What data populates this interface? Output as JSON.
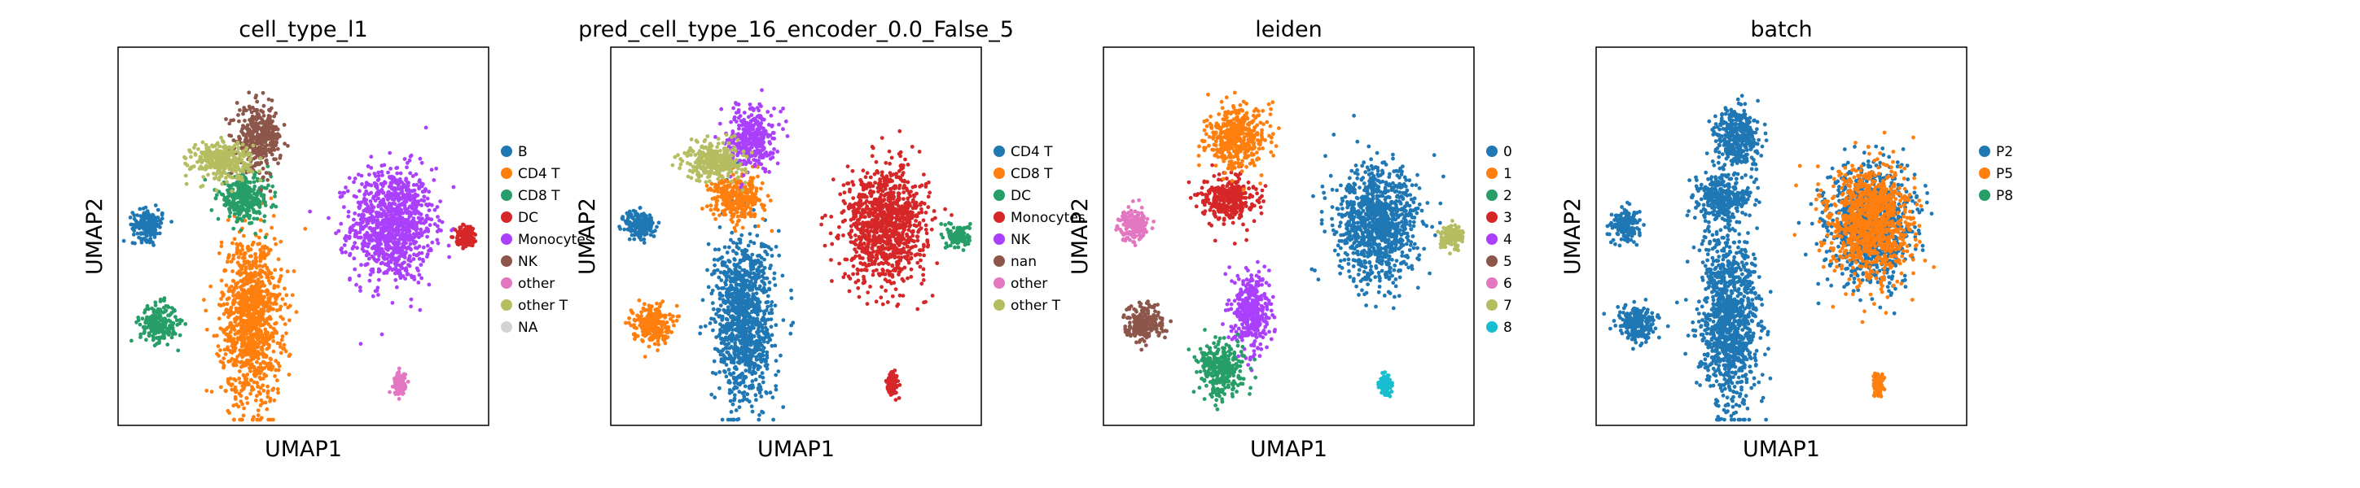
{
  "chart_data": [
    {
      "type": "scatter",
      "title": "cell_type_l1",
      "xlabel": "UMAP1",
      "ylabel": "UMAP2",
      "legend_position": "right",
      "grid": false,
      "legend": [
        {
          "label": "B",
          "color": "#1f77b4"
        },
        {
          "label": "CD4 T",
          "color": "#ff7f0e"
        },
        {
          "label": "CD8 T",
          "color": "#279e68"
        },
        {
          "label": "DC",
          "color": "#d62728"
        },
        {
          "label": "Monocytes",
          "color": "#aa40fc"
        },
        {
          "label": "NK",
          "color": "#8c564b"
        },
        {
          "label": "other",
          "color": "#e377c2"
        },
        {
          "label": "other T",
          "color": "#b5bd61"
        },
        {
          "label": "NA",
          "color": "#d3d3d3"
        }
      ],
      "clusters": [
        {
          "label": "Monocytes",
          "center": [
            0.74,
            0.53
          ],
          "spread": [
            0.11,
            0.15
          ]
        },
        {
          "label": "DC",
          "center": [
            0.94,
            0.5
          ],
          "spread": [
            0.03,
            0.03
          ]
        },
        {
          "label": "B",
          "center": [
            0.08,
            0.53
          ],
          "spread": [
            0.04,
            0.04
          ]
        },
        {
          "label": "CD8 T",
          "center": [
            0.11,
            0.27
          ],
          "spread": [
            0.05,
            0.05
          ]
        },
        {
          "label": "CD4 T",
          "center": [
            0.36,
            0.28
          ],
          "spread": [
            0.08,
            0.22
          ]
        },
        {
          "label": "CD8 T",
          "center": [
            0.34,
            0.6
          ],
          "spread": [
            0.07,
            0.06
          ]
        },
        {
          "label": "NK",
          "center": [
            0.38,
            0.76
          ],
          "spread": [
            0.06,
            0.08
          ]
        },
        {
          "label": "other T",
          "center": [
            0.28,
            0.7
          ],
          "spread": [
            0.08,
            0.05
          ]
        },
        {
          "label": "other",
          "center": [
            0.76,
            0.11
          ],
          "spread": [
            0.015,
            0.03
          ]
        }
      ]
    },
    {
      "type": "scatter",
      "title": "pred_cell_type_16_encoder_0.0_False_5",
      "xlabel": "UMAP1",
      "ylabel": "UMAP2",
      "legend_position": "right",
      "grid": false,
      "legend": [
        {
          "label": "CD4 T",
          "color": "#1f77b4"
        },
        {
          "label": "CD8 T",
          "color": "#ff7f0e"
        },
        {
          "label": "DC",
          "color": "#279e68"
        },
        {
          "label": "Monocytes",
          "color": "#d62728"
        },
        {
          "label": "NK",
          "color": "#aa40fc"
        },
        {
          "label": "nan",
          "color": "#8c564b"
        },
        {
          "label": "other",
          "color": "#e377c2"
        },
        {
          "label": "other T",
          "color": "#b5bd61"
        }
      ],
      "clusters": [
        {
          "label": "Monocytes",
          "center": [
            0.74,
            0.53
          ],
          "spread": [
            0.11,
            0.15
          ]
        },
        {
          "label": "DC",
          "center": [
            0.94,
            0.5
          ],
          "spread": [
            0.03,
            0.03
          ]
        },
        {
          "label": "CD4 T",
          "center": [
            0.08,
            0.53
          ],
          "spread": [
            0.04,
            0.04
          ]
        },
        {
          "label": "CD8 T",
          "center": [
            0.11,
            0.27
          ],
          "spread": [
            0.05,
            0.05
          ]
        },
        {
          "label": "CD4 T",
          "center": [
            0.36,
            0.28
          ],
          "spread": [
            0.08,
            0.22
          ]
        },
        {
          "label": "CD8 T",
          "center": [
            0.34,
            0.6
          ],
          "spread": [
            0.07,
            0.06
          ]
        },
        {
          "label": "NK",
          "center": [
            0.38,
            0.76
          ],
          "spread": [
            0.06,
            0.08
          ]
        },
        {
          "label": "other T",
          "center": [
            0.28,
            0.7
          ],
          "spread": [
            0.08,
            0.05
          ]
        },
        {
          "label": "Monocytes",
          "center": [
            0.76,
            0.11
          ],
          "spread": [
            0.015,
            0.03
          ]
        }
      ]
    },
    {
      "type": "scatter",
      "title": "leiden",
      "xlabel": "UMAP1",
      "ylabel": "UMAP2",
      "legend_position": "right",
      "grid": false,
      "legend": [
        {
          "label": "0",
          "color": "#1f77b4"
        },
        {
          "label": "1",
          "color": "#ff7f0e"
        },
        {
          "label": "2",
          "color": "#279e68"
        },
        {
          "label": "3",
          "color": "#d62728"
        },
        {
          "label": "4",
          "color": "#aa40fc"
        },
        {
          "label": "5",
          "color": "#8c564b"
        },
        {
          "label": "6",
          "color": "#e377c2"
        },
        {
          "label": "7",
          "color": "#b5bd61"
        },
        {
          "label": "8",
          "color": "#17becf"
        }
      ],
      "clusters": [
        {
          "label": "0",
          "center": [
            0.74,
            0.53
          ],
          "spread": [
            0.11,
            0.15
          ]
        },
        {
          "label": "7",
          "center": [
            0.94,
            0.5
          ],
          "spread": [
            0.03,
            0.03
          ]
        },
        {
          "label": "6",
          "center": [
            0.08,
            0.53
          ],
          "spread": [
            0.04,
            0.04
          ]
        },
        {
          "label": "5",
          "center": [
            0.11,
            0.27
          ],
          "spread": [
            0.05,
            0.05
          ]
        },
        {
          "label": "4",
          "center": [
            0.4,
            0.3
          ],
          "spread": [
            0.05,
            0.1
          ]
        },
        {
          "label": "2",
          "center": [
            0.32,
            0.15
          ],
          "spread": [
            0.06,
            0.07
          ]
        },
        {
          "label": "3",
          "center": [
            0.34,
            0.6
          ],
          "spread": [
            0.07,
            0.06
          ]
        },
        {
          "label": "1",
          "center": [
            0.36,
            0.76
          ],
          "spread": [
            0.08,
            0.08
          ]
        },
        {
          "label": "8",
          "center": [
            0.76,
            0.11
          ],
          "spread": [
            0.015,
            0.03
          ]
        }
      ]
    },
    {
      "type": "scatter",
      "title": "batch",
      "xlabel": "UMAP1",
      "ylabel": "UMAP2",
      "legend_position": "right",
      "grid": false,
      "legend": [
        {
          "label": "P2",
          "color": "#1f77b4"
        },
        {
          "label": "P5",
          "color": "#ff7f0e"
        },
        {
          "label": "P8",
          "color": "#279e68"
        }
      ],
      "clusters": [
        {
          "label": "P2",
          "center": [
            0.74,
            0.53
          ],
          "spread": [
            0.11,
            0.15
          ]
        },
        {
          "label": "P5",
          "center": [
            0.74,
            0.53
          ],
          "spread": [
            0.11,
            0.15
          ]
        },
        {
          "label": "P2",
          "center": [
            0.08,
            0.53
          ],
          "spread": [
            0.04,
            0.04
          ]
        },
        {
          "label": "P2",
          "center": [
            0.11,
            0.27
          ],
          "spread": [
            0.05,
            0.05
          ]
        },
        {
          "label": "P2",
          "center": [
            0.36,
            0.28
          ],
          "spread": [
            0.08,
            0.22
          ]
        },
        {
          "label": "P2",
          "center": [
            0.34,
            0.6
          ],
          "spread": [
            0.07,
            0.06
          ]
        },
        {
          "label": "P2",
          "center": [
            0.38,
            0.76
          ],
          "spread": [
            0.06,
            0.08
          ]
        },
        {
          "label": "P5",
          "center": [
            0.76,
            0.11
          ],
          "spread": [
            0.015,
            0.03
          ]
        }
      ]
    }
  ]
}
